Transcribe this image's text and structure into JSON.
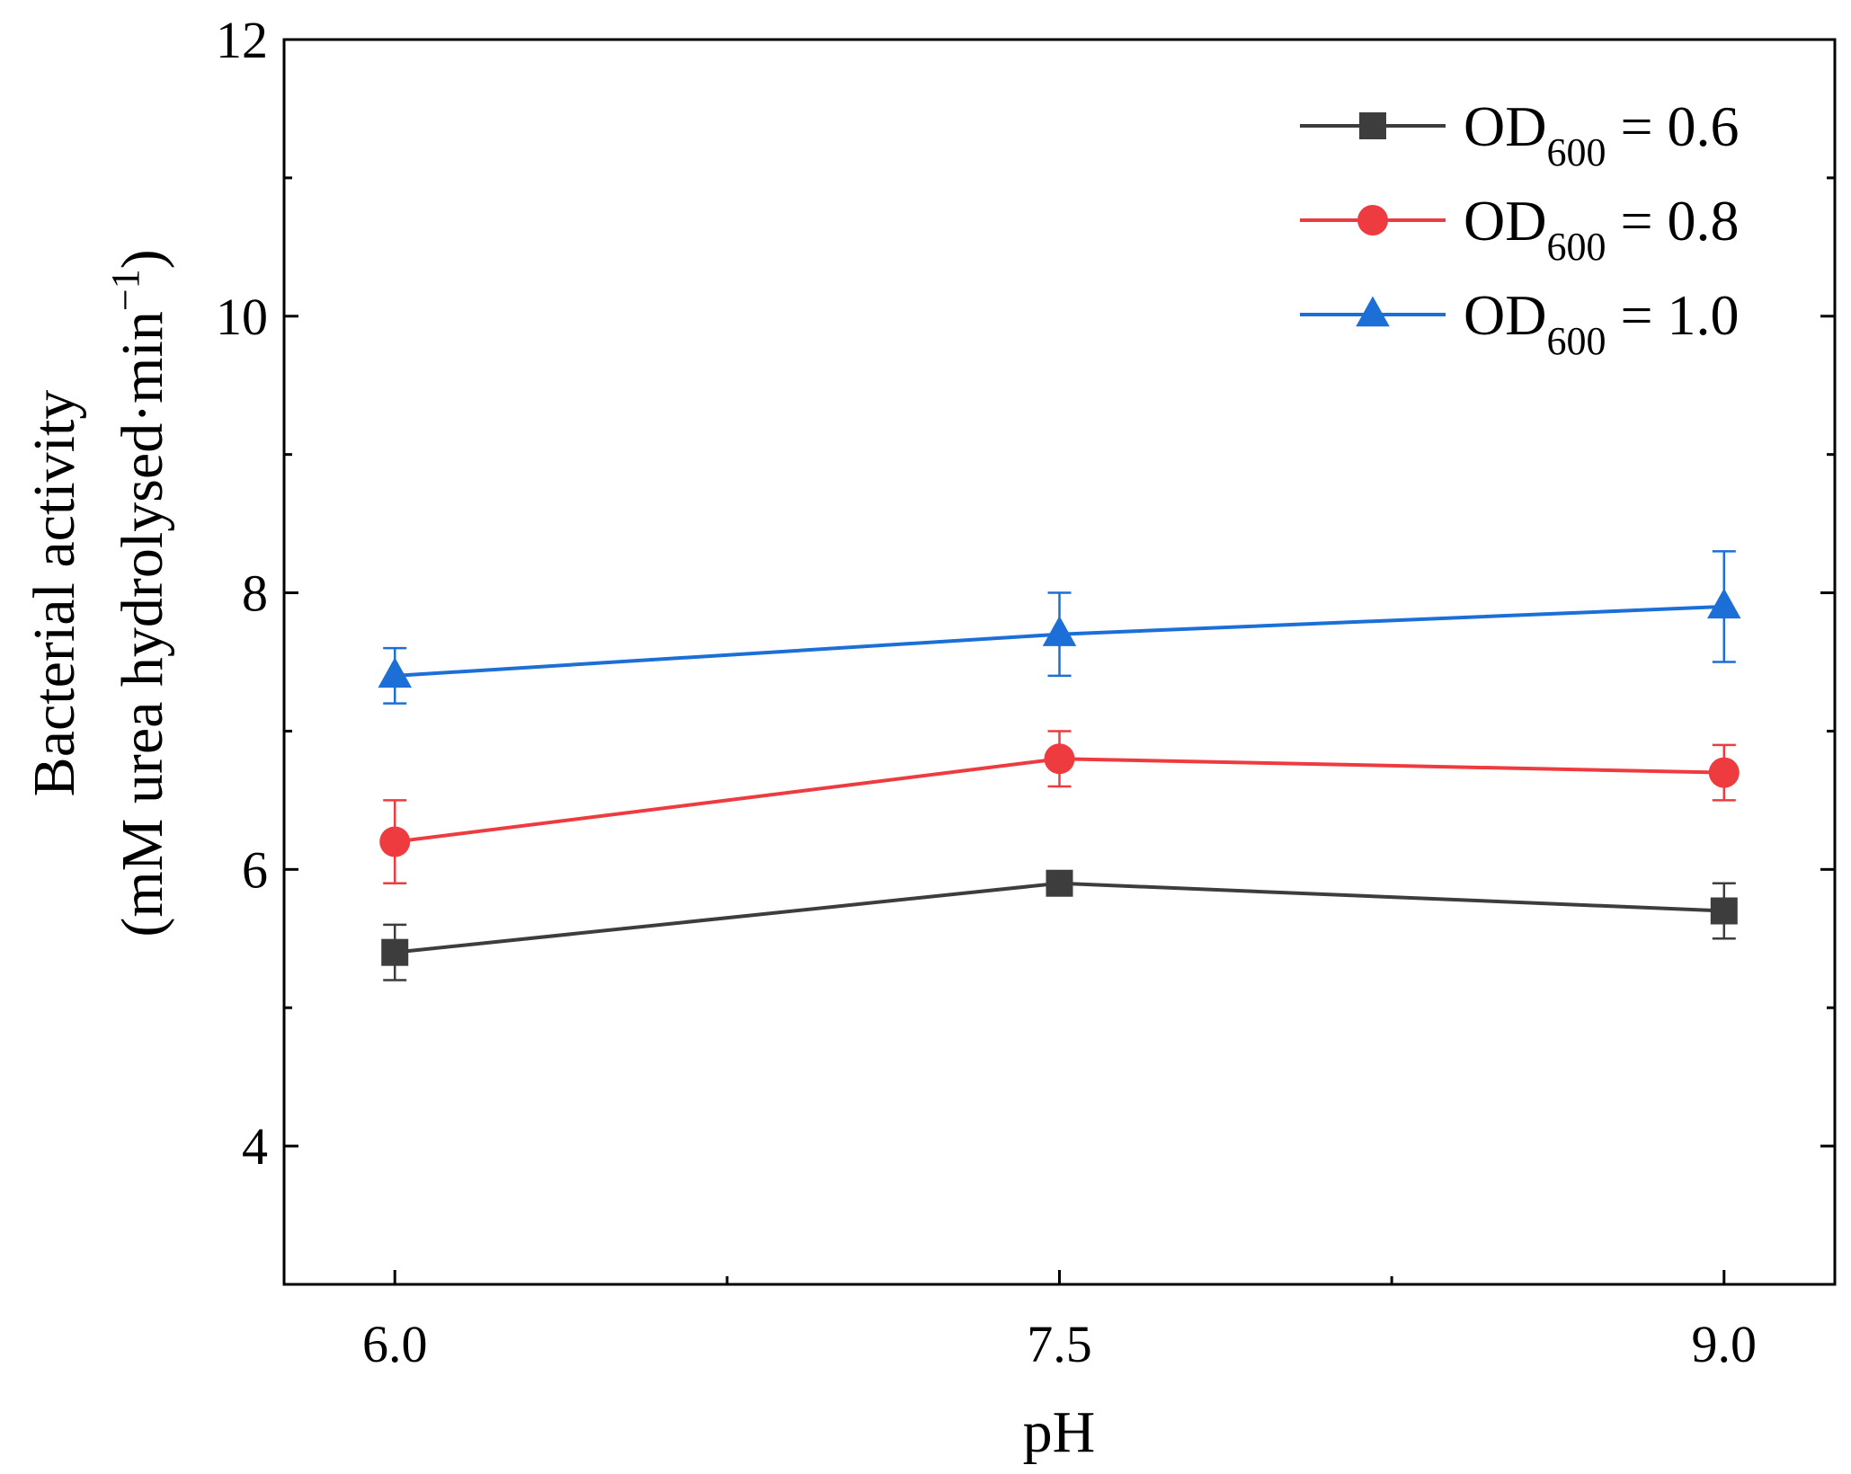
{
  "chart_data": {
    "type": "line",
    "title": "",
    "xlabel": "pH",
    "ylabel_line1": "Bacterial activity",
    "ylabel_line2_main": "(mM urea hydrolysed·min",
    "ylabel_line2_sup": "−1",
    "ylabel_line2_end": ")",
    "x": [
      6.0,
      7.5,
      9.0
    ],
    "x_tick_labels": [
      "6.0",
      "7.5",
      "9.0"
    ],
    "xlim": [
      5.75,
      9.25
    ],
    "ylim": [
      3,
      12
    ],
    "y_ticks": [
      4,
      6,
      8,
      10,
      12
    ],
    "y_tick_labels": [
      "4",
      "6",
      "8",
      "10",
      "12"
    ],
    "y_minor_ticks": [
      5,
      7,
      9,
      11
    ],
    "x_minor_ticks": [
      6.75,
      8.25
    ],
    "grid": false,
    "legend_position": "top-right",
    "series": [
      {
        "name_main": "OD",
        "name_sub": "600",
        "name_value": " = 0.6",
        "values": [
          5.4,
          5.9,
          5.7
        ],
        "errors": [
          0.2,
          0.0,
          0.2
        ],
        "color": "#3d3d3d",
        "marker": "square"
      },
      {
        "name_main": "OD",
        "name_sub": "600",
        "name_value": " = 0.8",
        "values": [
          6.2,
          6.8,
          6.7
        ],
        "errors": [
          0.3,
          0.2,
          0.2
        ],
        "color": "#ee3b3f",
        "marker": "circle"
      },
      {
        "name_main": "OD",
        "name_sub": "600",
        "name_value": " = 1.0",
        "values": [
          7.4,
          7.7,
          7.9
        ],
        "errors": [
          0.2,
          0.3,
          0.4
        ],
        "color": "#1c6fd6",
        "marker": "triangle"
      }
    ]
  }
}
